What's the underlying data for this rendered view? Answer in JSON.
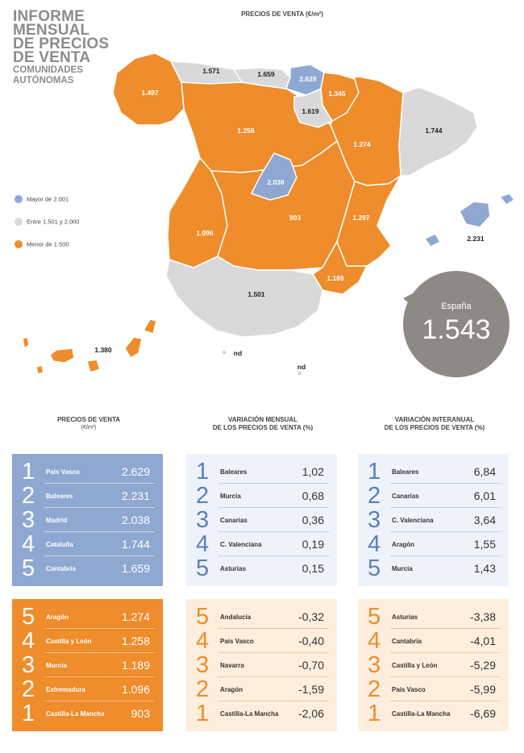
{
  "title": {
    "lines": [
      "INFORME",
      "MENSUAL",
      "DE PRECIOS",
      "DE VENTA"
    ],
    "sub": [
      "COMUNIDADES",
      "AUTÓNOMAS"
    ]
  },
  "map_heading": "PRECIOS DE VENTA (€/m²)",
  "colors": {
    "blue": "#8fa8d2",
    "grey": "#d9d9d9",
    "orange": "#ef8c2b",
    "bubble": "#8d8984"
  },
  "legend": [
    {
      "label": "Mayor de 2.001",
      "color": "#8fa8d2"
    },
    {
      "label": "Entre 1.501 y 2.000",
      "color": "#d9d9d9"
    },
    {
      "label": "Menor de 1.500",
      "color": "#ef8c2b"
    }
  ],
  "region_values": {
    "galicia": "1.497",
    "asturias": "1.571",
    "cantabria": "1.659",
    "pais_vasco": "2.629",
    "navarra": "1.345",
    "la_rioja": "1.619",
    "castilla_leon": "1.258",
    "aragon": "1.274",
    "cataluna": "1.744",
    "madrid": "2.038",
    "castilla_la_mancha": "903",
    "valenciana": "1.297",
    "extremadura": "1.096",
    "murcia": "1.189",
    "andalucia": "1.501",
    "baleares": "2.231",
    "canarias": "1.380",
    "ceuta": "nd",
    "melilla": "nd"
  },
  "bubble": {
    "label": "España",
    "value": "1.543"
  },
  "columns": {
    "precios": {
      "heading": [
        "PRECIOS DE VENTA",
        "(€/m²)"
      ],
      "top": [
        {
          "rank": "1",
          "name": "País Vasco",
          "value": "2.629"
        },
        {
          "rank": "2",
          "name": "Baleares",
          "value": "2.231"
        },
        {
          "rank": "3",
          "name": "Madrid",
          "value": "2.038"
        },
        {
          "rank": "4",
          "name": "Cataluña",
          "value": "1.744"
        },
        {
          "rank": "5",
          "name": "Cantabria",
          "value": "1.659"
        }
      ],
      "bottom": [
        {
          "rank": "5",
          "name": "Aragón",
          "value": "1.274"
        },
        {
          "rank": "4",
          "name": "Castilla y León",
          "value": "1.258"
        },
        {
          "rank": "3",
          "name": "Murcia",
          "value": "1.189"
        },
        {
          "rank": "2",
          "name": "Extremadura",
          "value": "1.096"
        },
        {
          "rank": "1",
          "name": "Castilla-La Mancha",
          "value": "903"
        }
      ]
    },
    "mensual": {
      "heading": [
        "VARIACIÓN MENSUAL",
        "DE LOS PRECIOS DE VENTA (%)"
      ],
      "top": [
        {
          "rank": "1",
          "name": "Baleares",
          "value": "1,02"
        },
        {
          "rank": "2",
          "name": "Murcia",
          "value": "0,68"
        },
        {
          "rank": "3",
          "name": "Canarias",
          "value": "0,36"
        },
        {
          "rank": "4",
          "name": "C. Valenciana",
          "value": "0,19"
        },
        {
          "rank": "5",
          "name": "Asturias",
          "value": "0,15"
        }
      ],
      "bottom": [
        {
          "rank": "5",
          "name": "Andalucía",
          "value": "-0,32"
        },
        {
          "rank": "4",
          "name": "País Vasco",
          "value": "-0,40"
        },
        {
          "rank": "3",
          "name": "Navarra",
          "value": "-0,70"
        },
        {
          "rank": "2",
          "name": "Aragón",
          "value": "-1,59"
        },
        {
          "rank": "1",
          "name": "Castilla-La Mancha",
          "value": "-2,06"
        }
      ]
    },
    "interanual": {
      "heading": [
        "VARIACIÓN INTERANUAL",
        "DE LOS PRECIOS DE VENTA (%)"
      ],
      "top": [
        {
          "rank": "1",
          "name": "Baleares",
          "value": "6,84"
        },
        {
          "rank": "2",
          "name": "Canarias",
          "value": "6,01"
        },
        {
          "rank": "3",
          "name": "C. Valenciana",
          "value": "3,64"
        },
        {
          "rank": "4",
          "name": "Aragón",
          "value": "1,55"
        },
        {
          "rank": "5",
          "name": "Murcia",
          "value": "1,43"
        }
      ],
      "bottom": [
        {
          "rank": "5",
          "name": "Asturias",
          "value": "-3,38"
        },
        {
          "rank": "4",
          "name": "Cantabria",
          "value": "-4,01"
        },
        {
          "rank": "3",
          "name": "Castilla y León",
          "value": "-5,29"
        },
        {
          "rank": "2",
          "name": "País Vasco",
          "value": "-5,99"
        },
        {
          "rank": "1",
          "name": "Castilla-La Mancha",
          "value": "-6,69"
        }
      ]
    }
  }
}
